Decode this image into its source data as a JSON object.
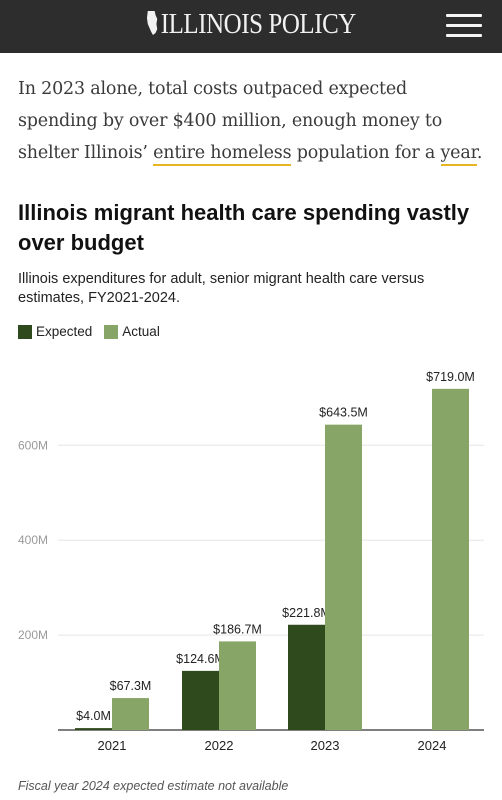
{
  "header": {
    "logo_text": "ILLINOIS POLICY",
    "menu_icon": "hamburger-menu-icon",
    "background_color": "#2d2d2d"
  },
  "article": {
    "intro_part1": "In 2023 alone, total costs outpaced expected spending by over $400 million, enough money to shelter Illinois’ ",
    "intro_link1": "entire homeless",
    "intro_part2": " population for a ",
    "intro_link2": "year",
    "intro_part3": ".",
    "link_underline_color": "#e8b624"
  },
  "chart_data": {
    "type": "bar",
    "title": "Illinois migrant health care spending vastly over budget",
    "subtitle": "Illinois expenditures for adult, senior migrant health care versus estimates, FY2021-2024.",
    "categories": [
      "2021",
      "2022",
      "2023",
      "2024"
    ],
    "series": [
      {
        "name": "Expected",
        "color": "#2f4b1d",
        "values": [
          4.0,
          124.6,
          221.8,
          null
        ],
        "labels": [
          "$4.0M",
          "$124.6M",
          "$221.8M",
          ""
        ]
      },
      {
        "name": "Actual",
        "color": "#86a566",
        "values": [
          67.3,
          186.7,
          643.5,
          719.0
        ],
        "labels": [
          "$67.3M",
          "$186.7M",
          "$643.5M",
          "$719.0M"
        ]
      }
    ],
    "y_ticks": [
      {
        "value": 200,
        "label": "200M"
      },
      {
        "value": 400,
        "label": "400M"
      },
      {
        "value": 600,
        "label": "600M"
      }
    ],
    "ylim": [
      0,
      760
    ],
    "grid": true,
    "legend_position": "top-left",
    "note": "Fiscal year 2024 expected estimate not available"
  }
}
